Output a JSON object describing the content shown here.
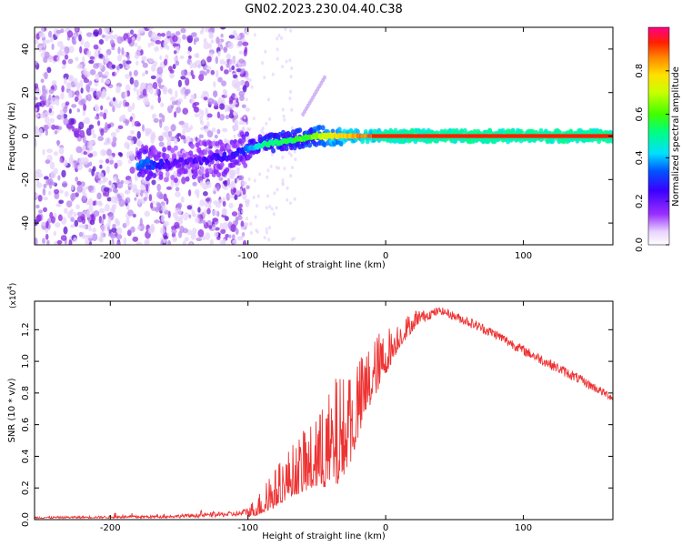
{
  "title": "GN02.2023.230.04.40.C38",
  "colors": {
    "signal": "#ee3333",
    "scatter": "#8a2be2",
    "axis": "#000000"
  },
  "chart_data": [
    {
      "type": "heatmap",
      "title": "GN02.2023.230.04.40.C38",
      "xlabel": "Height of straight line (km)",
      "ylabel": "Frequency (Hz)",
      "xlim": [
        -255,
        165
      ],
      "ylim": [
        -50,
        50
      ],
      "xticks": [
        -200,
        -100,
        0,
        100
      ],
      "xtick_labels": [
        "-200",
        "-100",
        "0",
        "100"
      ],
      "yticks": [
        -40,
        -20,
        0,
        20,
        40
      ],
      "ytick_labels": [
        "-40",
        "-20",
        "0",
        "20",
        "40"
      ],
      "colorbar": {
        "label": "Normalized spectral amplitude",
        "range": [
          0.0,
          1.0
        ],
        "ticks": [
          0.0,
          0.2,
          0.4,
          0.6,
          0.8
        ],
        "tick_labels": [
          "0.0",
          "0.2",
          "0.4",
          "0.6",
          "0.8"
        ],
        "colormap": "rainbow (purple to red)"
      },
      "ridge": [
        {
          "x": -175,
          "y": -13,
          "amp": 0.3
        },
        {
          "x": -160,
          "y": -13,
          "amp": 0.2
        },
        {
          "x": -145,
          "y": -12,
          "amp": 0.15
        },
        {
          "x": -120,
          "y": -10,
          "amp": 0.2
        },
        {
          "x": -110,
          "y": -8,
          "amp": 0.2
        },
        {
          "x": -100,
          "y": -6,
          "amp": 0.3
        },
        {
          "x": -90,
          "y": -4,
          "amp": 0.45
        },
        {
          "x": -80,
          "y": -3,
          "amp": 0.5
        },
        {
          "x": -70,
          "y": -2,
          "amp": 0.5
        },
        {
          "x": -60,
          "y": -1,
          "amp": 0.55
        },
        {
          "x": -50,
          "y": 0,
          "amp": 0.6
        },
        {
          "x": -40,
          "y": 0,
          "amp": 0.7
        },
        {
          "x": -30,
          "y": 0,
          "amp": 0.75
        },
        {
          "x": -20,
          "y": 0,
          "amp": 0.8
        },
        {
          "x": -10,
          "y": 0,
          "amp": 0.85
        },
        {
          "x": 0,
          "y": 0,
          "amp": 0.9
        },
        {
          "x": 40,
          "y": 0,
          "amp": 0.95
        },
        {
          "x": 80,
          "y": 0,
          "amp": 0.95
        },
        {
          "x": 120,
          "y": 0,
          "amp": 0.95
        },
        {
          "x": 165,
          "y": 0,
          "amp": 0.95
        }
      ],
      "noise_region": {
        "xmin": -255,
        "xmax": -110,
        "amp": 0.1
      }
    },
    {
      "type": "line",
      "xlabel": "Height of straight line (km)",
      "ylabel": "SNR (10 * v/v)",
      "y_multiplier": "(x10",
      "y_multiplier_exp": "4",
      "y_multiplier_close": ")",
      "xlim": [
        -255,
        165
      ],
      "ylim": [
        0.0,
        1.38
      ],
      "xticks": [
        -200,
        -100,
        0,
        100
      ],
      "xtick_labels": [
        "-200",
        "-100",
        "0",
        "100"
      ],
      "yticks": [
        0.0,
        0.2,
        0.4,
        0.6,
        0.8,
        1.0,
        1.2
      ],
      "ytick_labels": [
        "0.0",
        "0.2",
        "0.4",
        "0.6",
        "0.8",
        "1.0",
        "1.2"
      ],
      "series": [
        {
          "name": "SNR",
          "envelope": [
            {
              "x": -255,
              "y": 0.01,
              "noise": 0.01
            },
            {
              "x": -160,
              "y": 0.015,
              "noise": 0.015
            },
            {
              "x": -105,
              "y": 0.03,
              "noise": 0.03
            },
            {
              "x": -95,
              "y": 0.06,
              "noise": 0.06
            },
            {
              "x": -85,
              "y": 0.12,
              "noise": 0.12
            },
            {
              "x": -70,
              "y": 0.25,
              "noise": 0.18
            },
            {
              "x": -50,
              "y": 0.35,
              "noise": 0.25
            },
            {
              "x": -35,
              "y": 0.45,
              "noise": 0.4
            },
            {
              "x": -25,
              "y": 0.55,
              "noise": 0.3
            },
            {
              "x": -15,
              "y": 0.8,
              "noise": 0.25
            },
            {
              "x": -5,
              "y": 0.95,
              "noise": 0.2
            },
            {
              "x": 10,
              "y": 1.15,
              "noise": 0.1
            },
            {
              "x": 25,
              "y": 1.28,
              "noise": 0.05
            },
            {
              "x": 40,
              "y": 1.32,
              "noise": 0.03
            },
            {
              "x": 60,
              "y": 1.25,
              "noise": 0.04
            },
            {
              "x": 80,
              "y": 1.17,
              "noise": 0.04
            },
            {
              "x": 100,
              "y": 1.07,
              "noise": 0.04
            },
            {
              "x": 120,
              "y": 0.98,
              "noise": 0.04
            },
            {
              "x": 140,
              "y": 0.89,
              "noise": 0.04
            },
            {
              "x": 165,
              "y": 0.77,
              "noise": 0.03
            }
          ]
        }
      ]
    }
  ]
}
